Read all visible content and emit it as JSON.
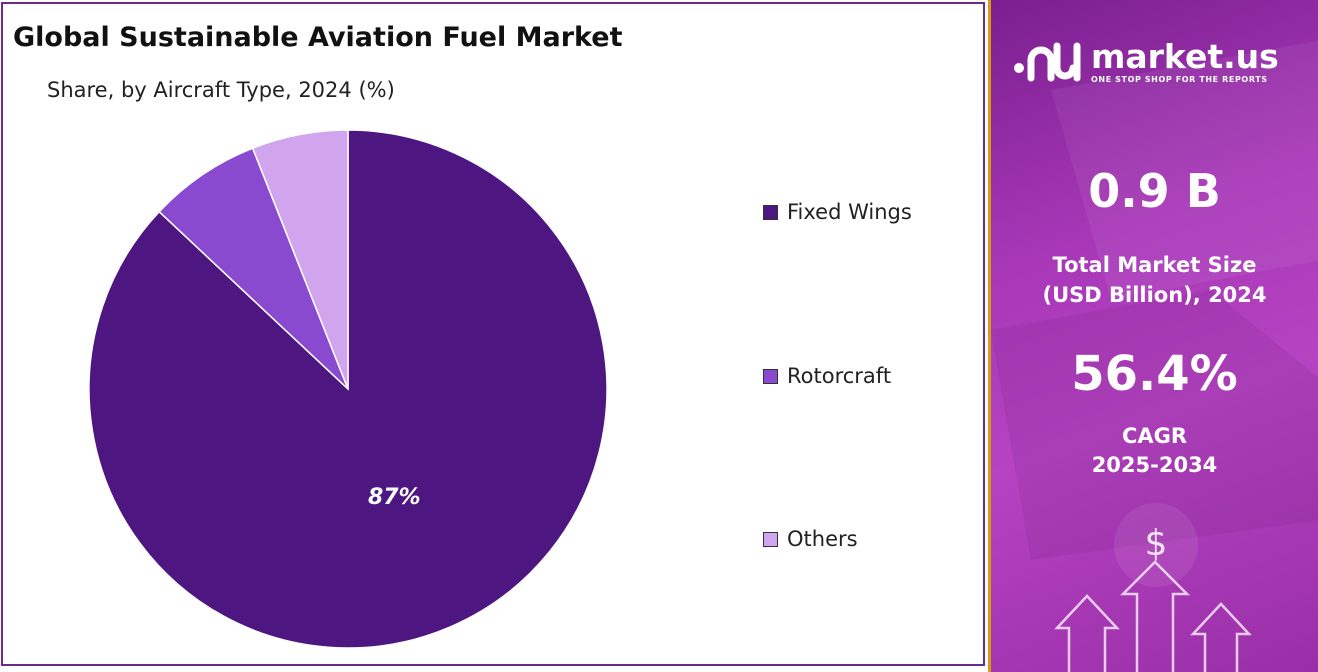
{
  "title": "Global Sustainable Aviation Fuel Market",
  "subtitle": "Share, by Aircraft Type, 2024 (%)",
  "chart_data": {
    "type": "pie",
    "title": "Global Sustainable Aviation Fuel Market",
    "subtitle": "Share, by Aircraft Type, 2024 (%)",
    "categories": [
      "Fixed Wings",
      "Rotorcraft",
      "Others"
    ],
    "values": [
      87,
      7,
      6
    ],
    "colors": [
      "#4e1681",
      "#8a4ad0",
      "#d1a4ee"
    ],
    "data_labels": [
      "87%",
      "",
      ""
    ],
    "legend_placement": "right"
  },
  "legend": {
    "items": [
      {
        "label": "Fixed Wings",
        "color": "#4e1681"
      },
      {
        "label": "Rotorcraft",
        "color": "#8a4ad0"
      },
      {
        "label": "Others",
        "color": "#d1a4ee"
      }
    ]
  },
  "brand": {
    "name": "market.us",
    "tagline": "ONE STOP SHOP FOR THE REPORTS"
  },
  "stats": {
    "market_size_value": "0.9 B",
    "market_size_label_line1": "Total Market Size",
    "market_size_label_line2": "(USD Billion), 2024",
    "cagr_value": "56.4%",
    "cagr_label_line1": "CAGR",
    "cagr_label_line2": "2025-2034"
  },
  "colors": {
    "panel_accent": "#d79a1a",
    "panel_purple": "#a838b8"
  }
}
